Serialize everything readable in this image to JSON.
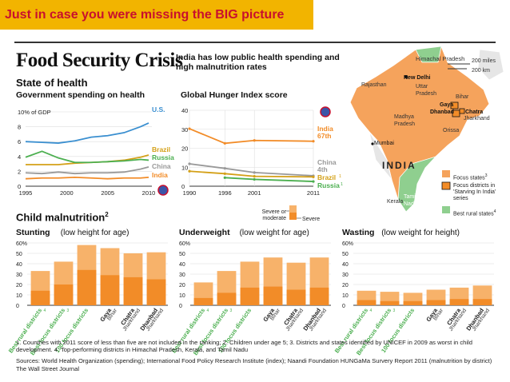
{
  "banner": "Just in case you were missing the BIG picture",
  "title": "Food Security Crisis",
  "subtitle": "India has low public health spending and high malnutrition rates",
  "state_of_health": "State of health",
  "gov_spending_title": "Government spending on health",
  "ghi_title": "Global Hunger Index score",
  "child_malnutrition": "Child malnutrition",
  "child_malnutrition_sup": "2",
  "severity_legend": {
    "severe_or_moderate": "Severe or moderate",
    "severe": "Severe"
  },
  "colors": {
    "india": "#f28c28",
    "us": "#3a8fd0",
    "brazil": "#d4a017",
    "russia": "#4caf50",
    "china": "#999999",
    "bar_light": "#f7b26a",
    "bar_dark": "#f28c28",
    "banner": "#f2b400",
    "banner_text": "#c8102e"
  },
  "map": {
    "title": "INDIA",
    "scale": [
      "200 miles",
      "200 km"
    ],
    "labels": [
      "Himachal Pradesh",
      "New Delhi",
      "Rajasthan",
      "Uttar Pradesh",
      "Bihar",
      "Gaya",
      "Dhanbad",
      "Chatra",
      "Jharkhand",
      "Madhya Pradesh",
      "Orissa",
      "Mumbai",
      "Kerala",
      "Tamil Nadu"
    ],
    "legend": [
      {
        "label": "Focus states",
        "sup": "3",
        "color": "#f5a35c"
      },
      {
        "label": "Focus districts in 'Starving In India' series",
        "sup": "",
        "color": "#f28c28"
      },
      {
        "label": "Best rural states",
        "sup": "4",
        "color": "#8fcf8f"
      }
    ]
  },
  "chart_data": [
    {
      "type": "line",
      "title": "Government spending on health",
      "ylabel": "10% of GDP",
      "x": [
        1995,
        1997,
        1999,
        2001,
        2003,
        2005,
        2007,
        2009,
        2010
      ],
      "xticks": [
        "1995",
        "2000",
        "2005",
        "2010"
      ],
      "yticks": [
        "0",
        "2",
        "4",
        "6",
        "8",
        "10% of GDP"
      ],
      "ylim": [
        0,
        10
      ],
      "series": [
        {
          "name": "U.S.",
          "values": [
            6.0,
            5.9,
            5.8,
            6.1,
            6.6,
            6.8,
            7.2,
            8.0,
            8.5
          ]
        },
        {
          "name": "Brazil",
          "values": [
            2.9,
            2.9,
            2.9,
            3.1,
            3.2,
            3.3,
            3.5,
            3.9,
            4.2
          ]
        },
        {
          "name": "Russia",
          "values": [
            3.9,
            4.7,
            3.8,
            3.2,
            3.2,
            3.3,
            3.4,
            3.6,
            3.5
          ]
        },
        {
          "name": "China",
          "values": [
            1.8,
            1.7,
            1.9,
            1.7,
            1.8,
            1.8,
            1.9,
            2.3,
            2.6
          ]
        },
        {
          "name": "India",
          "values": [
            1.0,
            1.1,
            1.1,
            1.2,
            1.1,
            1.0,
            1.1,
            1.1,
            1.2
          ]
        }
      ]
    },
    {
      "type": "line",
      "title": "Global Hunger Index score",
      "x": [
        1990,
        1996,
        2001,
        2011
      ],
      "xticks": [
        "1990",
        "1996",
        "2001",
        "2011"
      ],
      "yticks": [
        "0",
        "10",
        "20",
        "30",
        "40"
      ],
      "ylim": [
        0,
        40
      ],
      "series": [
        {
          "name": "India",
          "label": "67th",
          "values": [
            30.3,
            22.6,
            24.1,
            23.7
          ]
        },
        {
          "name": "China",
          "label": "4th",
          "values": [
            11.8,
            9.4,
            7.2,
            5.5
          ]
        },
        {
          "name": "Brazil",
          "label": "1",
          "values": [
            7.9,
            6.6,
            5.2,
            4.9
          ]
        },
        {
          "name": "Russia",
          "label": "1",
          "values": [
            null,
            4.5,
            3.6,
            2.5
          ]
        }
      ],
      "end_labels": [
        "India",
        "67th",
        "China",
        "4th",
        "Brazil",
        "Russia"
      ],
      "end_sup": "1"
    },
    {
      "type": "bar",
      "title": "Stunting",
      "subtitle": "(low height for age)",
      "yticks": [
        "0",
        "10",
        "20",
        "30",
        "40",
        "50",
        "60%"
      ],
      "ylim": [
        0,
        60
      ],
      "categories": [
        "Best rural districts",
        "Best focus districts",
        "100 focus districts",
        "Gaya",
        "Chatra",
        "Dhanbad"
      ],
      "sub_labels": [
        "",
        "",
        "",
        "Bihar",
        "Jharkhand",
        "Jharkhand"
      ],
      "category_sups": [
        "4",
        "3",
        "",
        "",
        "",
        ""
      ],
      "series": [
        {
          "name": "Severe or moderate",
          "values": [
            33,
            42,
            58,
            55,
            50,
            51
          ]
        },
        {
          "name": "Severe",
          "values": [
            14,
            20,
            34,
            29,
            27,
            25
          ]
        }
      ]
    },
    {
      "type": "bar",
      "title": "Underweight",
      "subtitle": "(low weight for age)",
      "yticks": [
        "0",
        "10",
        "20",
        "30",
        "40",
        "50",
        "60%"
      ],
      "ylim": [
        0,
        60
      ],
      "categories": [
        "Best rural districts",
        "Best focus districts",
        "100 focus districts",
        "Gaya",
        "Chatra",
        "Dhanbad"
      ],
      "sub_labels": [
        "",
        "",
        "",
        "Bihar",
        "Jharkhand",
        "Jharkhand"
      ],
      "category_sups": [
        "4",
        "3",
        "",
        "",
        "",
        ""
      ],
      "series": [
        {
          "name": "Severe or moderate",
          "values": [
            22,
            33,
            42,
            46,
            41,
            46
          ]
        },
        {
          "name": "Severe",
          "values": [
            7,
            12,
            17,
            18,
            15,
            17
          ]
        }
      ]
    },
    {
      "type": "bar",
      "title": "Wasting",
      "subtitle": "(low weight for height)",
      "yticks": [
        "0",
        "10",
        "20",
        "30",
        "40",
        "50",
        "60%"
      ],
      "ylim": [
        0,
        60
      ],
      "categories": [
        "Best rural districts",
        "Best focus districts",
        "100 focus districts",
        "Gaya",
        "Chatra",
        "Dhanbad"
      ],
      "sub_labels": [
        "",
        "",
        "",
        "Bihar",
        "Jharkhand",
        "Jharkhand"
      ],
      "category_sups": [
        "4",
        "3",
        "",
        "",
        "",
        ""
      ],
      "series": [
        {
          "name": "Severe or moderate",
          "values": [
            14,
            13,
            12,
            15,
            17,
            19
          ]
        },
        {
          "name": "Severe",
          "values": [
            5,
            4,
            4,
            5,
            6,
            6
          ]
        }
      ]
    }
  ],
  "footnotes": {
    "notes": "1. Countries with 2011 score of less than five are not included in the ranking; 2. Children under age 5; 3. Districts and states identified by UNICEF in 2009 as worst in child development. 4. Top-performing districts in Himachal Pradesh, Kerala, and Tamil Nadu",
    "sources": "Sources: World Health Organization (spending); International Food Policy Research Institute (index); Naandi Foundation HUNGaMa Survery Report 2011 (malnutrition by district)",
    "credit": "The Wall Street Journal"
  }
}
